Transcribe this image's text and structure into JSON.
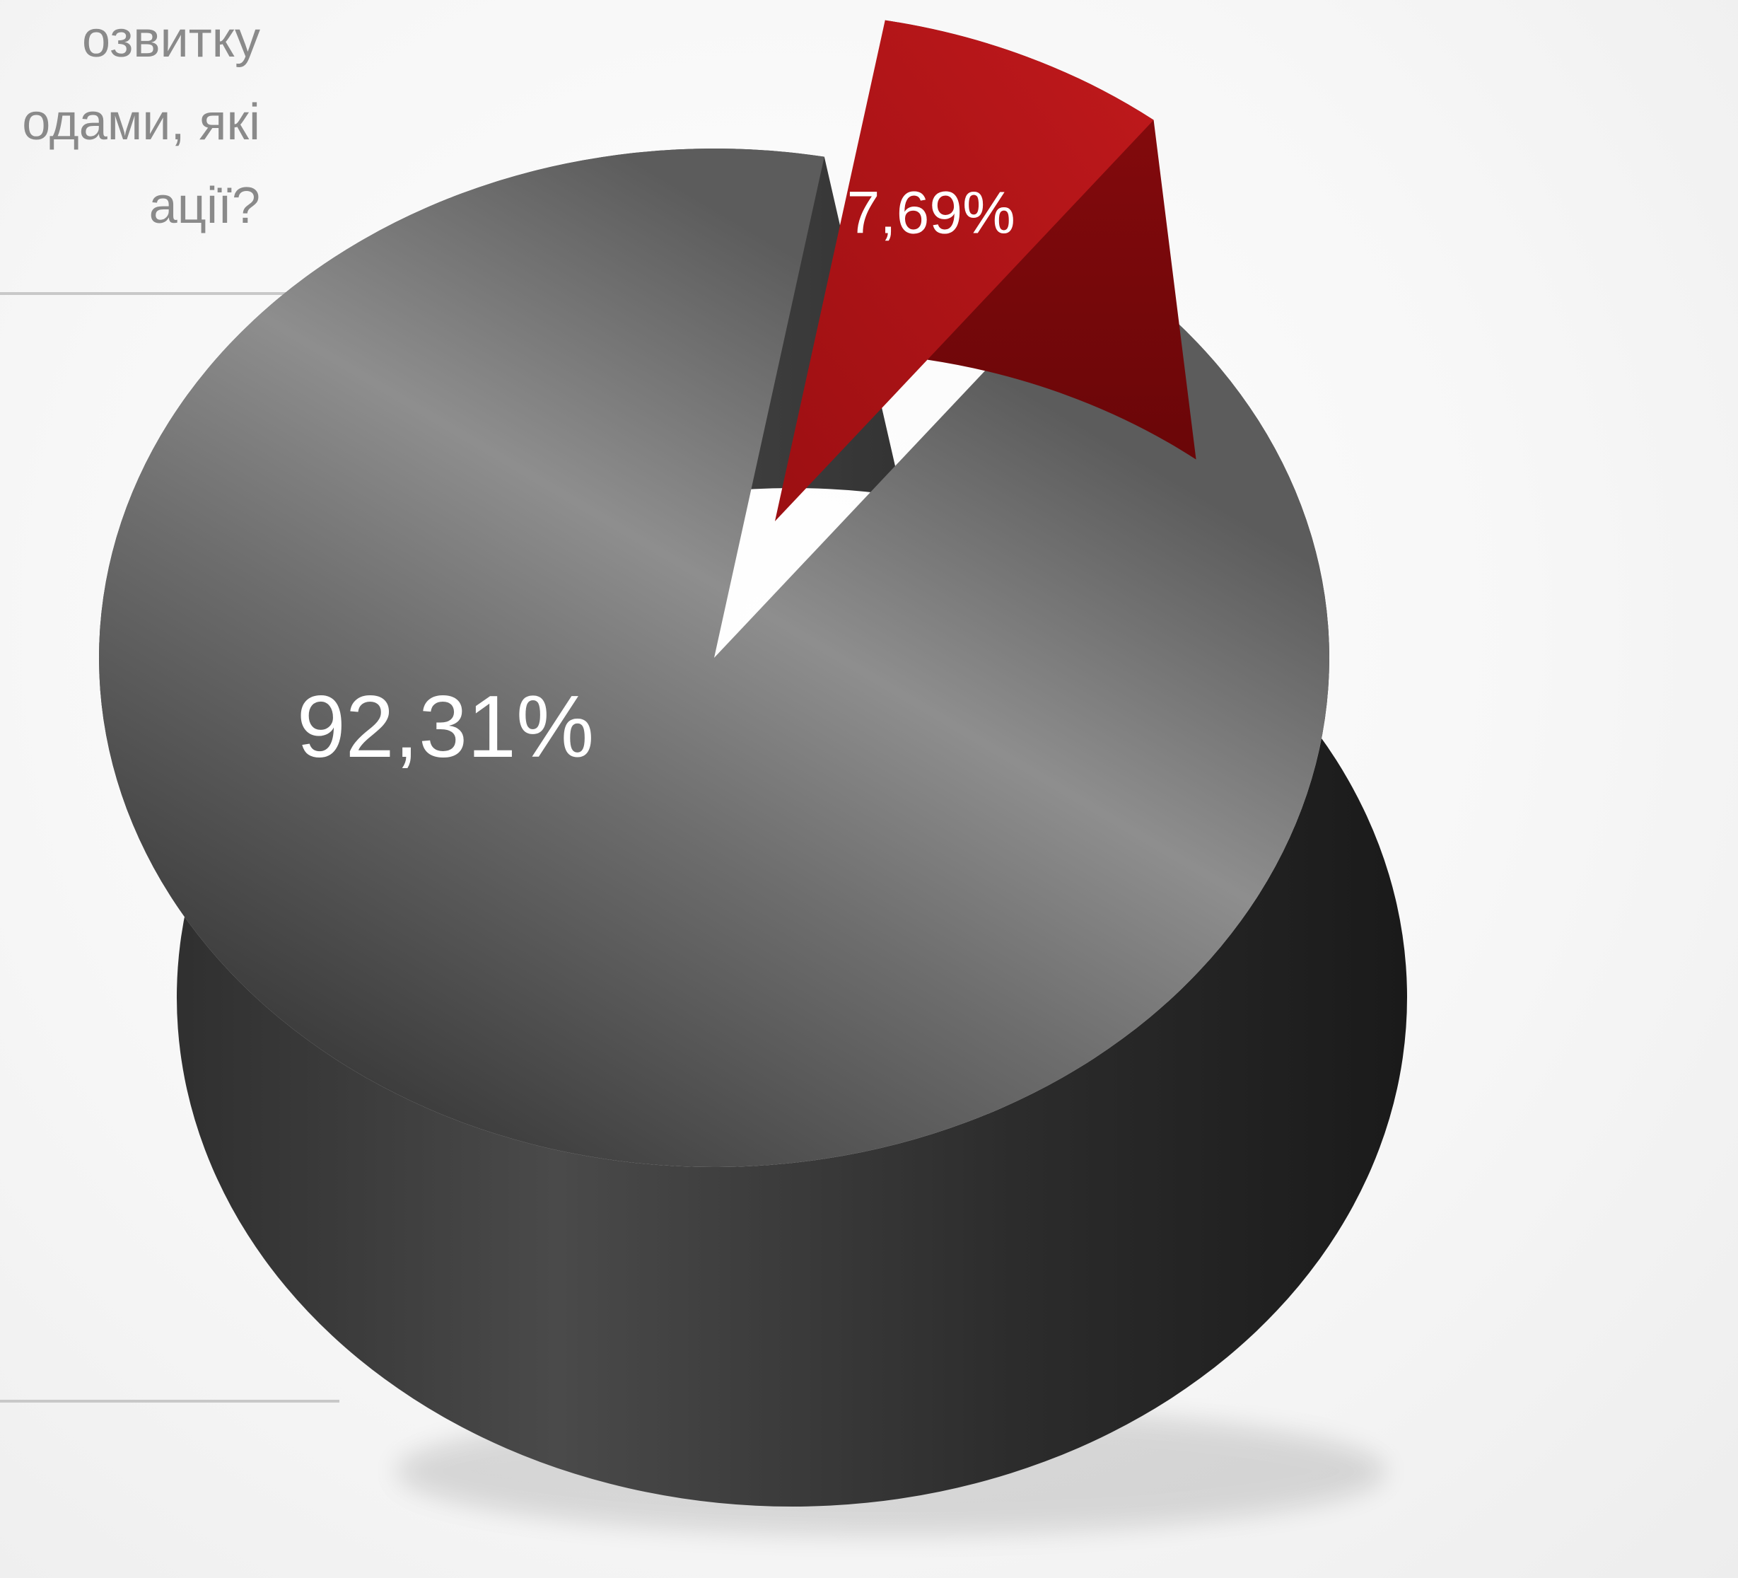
{
  "question": {
    "lines": [
      "озвитку",
      "одами, які",
      "ації?"
    ]
  },
  "chart_data": {
    "type": "pie",
    "style": "3d",
    "slices": [
      {
        "label": "92,31%",
        "value": 92.31,
        "color": "#3a3a3a"
      },
      {
        "label": "7,69%",
        "value": 7.69,
        "color": "#b3161a"
      }
    ]
  }
}
